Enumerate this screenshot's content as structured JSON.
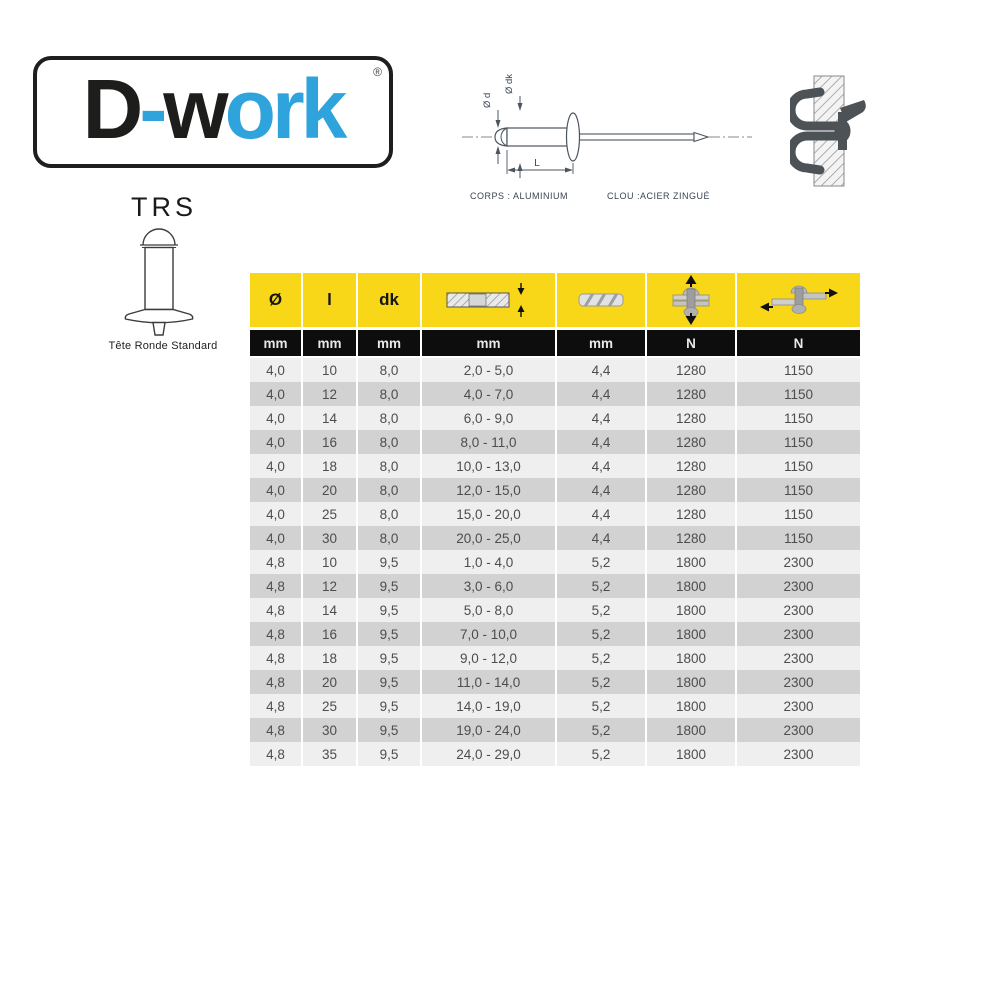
{
  "logo": {
    "part_d": "D",
    "part_dash": "-",
    "part_w": "w",
    "part_ork": "ork",
    "registered": "®"
  },
  "product": {
    "code": "TRS",
    "name": "Tête Ronde Standard"
  },
  "diagram": {
    "label_d": "Ø d",
    "label_dk": "Ø dk",
    "label_l": "L",
    "body_material": "CORPS : ALUMINIUM",
    "nail_material": "CLOU :ACIER ZINGUÉ"
  },
  "table": {
    "header": {
      "diameter": "Ø",
      "length": "l",
      "head_diameter": "dk",
      "icon_names": [
        "grip-range-icon",
        "drill-bit-icon",
        "tensile-strength-icon",
        "shear-strength-icon"
      ]
    },
    "units": [
      "mm",
      "mm",
      "mm",
      "mm",
      "mm",
      "N",
      "N"
    ],
    "rows": [
      [
        "4,0",
        "10",
        "8,0",
        "2,0 - 5,0",
        "4,4",
        "1280",
        "1150"
      ],
      [
        "4,0",
        "12",
        "8,0",
        "4,0 - 7,0",
        "4,4",
        "1280",
        "1150"
      ],
      [
        "4,0",
        "14",
        "8,0",
        "6,0 - 9,0",
        "4,4",
        "1280",
        "1150"
      ],
      [
        "4,0",
        "16",
        "8,0",
        "8,0 - 11,0",
        "4,4",
        "1280",
        "1150"
      ],
      [
        "4,0",
        "18",
        "8,0",
        "10,0 - 13,0",
        "4,4",
        "1280",
        "1150"
      ],
      [
        "4,0",
        "20",
        "8,0",
        "12,0 - 15,0",
        "4,4",
        "1280",
        "1150"
      ],
      [
        "4,0",
        "25",
        "8,0",
        "15,0 - 20,0",
        "4,4",
        "1280",
        "1150"
      ],
      [
        "4,0",
        "30",
        "8,0",
        "20,0 - 25,0",
        "4,4",
        "1280",
        "1150"
      ],
      [
        "4,8",
        "10",
        "9,5",
        "1,0 - 4,0",
        "5,2",
        "1800",
        "2300"
      ],
      [
        "4,8",
        "12",
        "9,5",
        "3,0 - 6,0",
        "5,2",
        "1800",
        "2300"
      ],
      [
        "4,8",
        "14",
        "9,5",
        "5,0 - 8,0",
        "5,2",
        "1800",
        "2300"
      ],
      [
        "4,8",
        "16",
        "9,5",
        "7,0 - 10,0",
        "5,2",
        "1800",
        "2300"
      ],
      [
        "4,8",
        "18",
        "9,5",
        "9,0 - 12,0",
        "5,2",
        "1800",
        "2300"
      ],
      [
        "4,8",
        "20",
        "9,5",
        "11,0 - 14,0",
        "5,2",
        "1800",
        "2300"
      ],
      [
        "4,8",
        "25",
        "9,5",
        "14,0 - 19,0",
        "5,2",
        "1800",
        "2300"
      ],
      [
        "4,8",
        "30",
        "9,5",
        "19,0 - 24,0",
        "5,2",
        "1800",
        "2300"
      ],
      [
        "4,8",
        "35",
        "9,5",
        "24,0 - 29,0",
        "5,2",
        "1800",
        "2300"
      ]
    ]
  },
  "colors": {
    "accent_yellow": "#F7D717",
    "header_black": "#0D0D0D",
    "row_light": "#EFEFEF",
    "row_dark": "#D2D2D2",
    "logo_blue": "#2EA3DC"
  }
}
